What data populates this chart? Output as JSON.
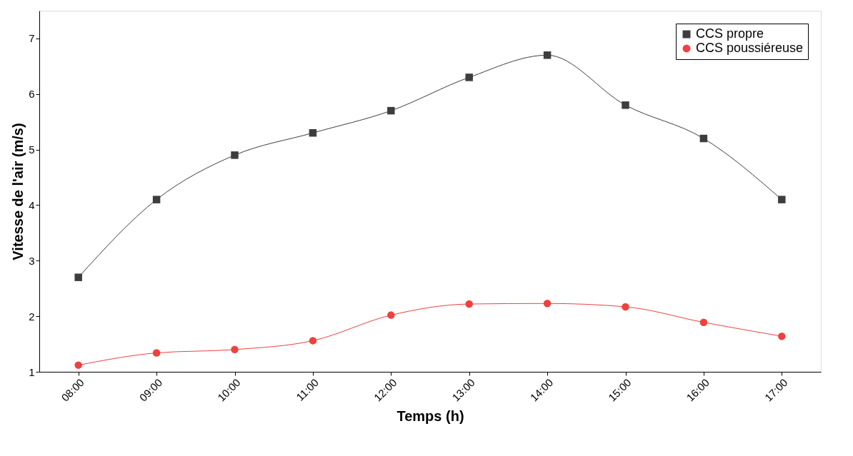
{
  "chart_data": {
    "type": "line",
    "xlabel": "Temps (h)",
    "ylabel": "Vitesse de l'air (m/s)",
    "categories": [
      "08:00",
      "09:00",
      "10:00",
      "11:00",
      "12:00",
      "13:00",
      "14:00",
      "15:00",
      "16:00",
      "17:00"
    ],
    "series": [
      {
        "name": "CCS propre",
        "color": "#3d3d3d",
        "marker": "square",
        "values": [
          2.7,
          4.1,
          4.9,
          5.3,
          5.7,
          6.3,
          6.7,
          5.8,
          5.2,
          4.1
        ]
      },
      {
        "name": "CCS poussiéreuse",
        "color": "#f04040",
        "marker": "circle",
        "values": [
          1.12,
          1.34,
          1.4,
          1.56,
          2.02,
          2.22,
          2.23,
          2.17,
          1.89,
          1.64
        ]
      }
    ],
    "ylim": [
      1,
      7.5
    ],
    "yticks": [
      1,
      2,
      3,
      4,
      5,
      6,
      7
    ],
    "grid": false,
    "legend": "top right",
    "line_style": "solid"
  }
}
